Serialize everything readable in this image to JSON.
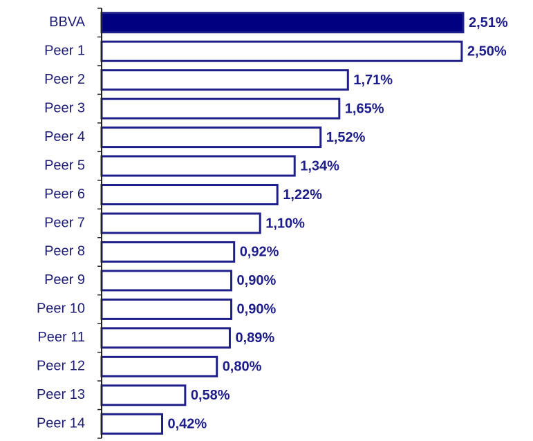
{
  "chart_data": {
    "type": "barh",
    "categories": [
      "BBVA",
      "Peer 1",
      "Peer 2",
      "Peer 3",
      "Peer 4",
      "Peer 5",
      "Peer 6",
      "Peer 7",
      "Peer 8",
      "Peer 9",
      "Peer 10",
      "Peer 11",
      "Peer 12",
      "Peer 13",
      "Peer 14"
    ],
    "values": [
      2.51,
      2.5,
      1.71,
      1.65,
      1.52,
      1.34,
      1.22,
      1.1,
      0.92,
      0.9,
      0.9,
      0.89,
      0.8,
      0.58,
      0.42
    ],
    "value_labels": [
      "2,51%",
      "2,50%",
      "1,71%",
      "1,65%",
      "1,52%",
      "1,34%",
      "1,22%",
      "1,10%",
      "0,92%",
      "0,90%",
      "0,90%",
      "0,89%",
      "0,80%",
      "0,58%",
      "0,42%"
    ],
    "bar_colors": [
      "#000080",
      "#ffffff",
      "#ffffff",
      "#ffffff",
      "#ffffff",
      "#ffffff",
      "#ffffff",
      "#ffffff",
      "#ffffff",
      "#ffffff",
      "#ffffff",
      "#ffffff",
      "#ffffff",
      "#ffffff",
      "#ffffff"
    ],
    "edgecolor": "#1f1f8c"
  }
}
